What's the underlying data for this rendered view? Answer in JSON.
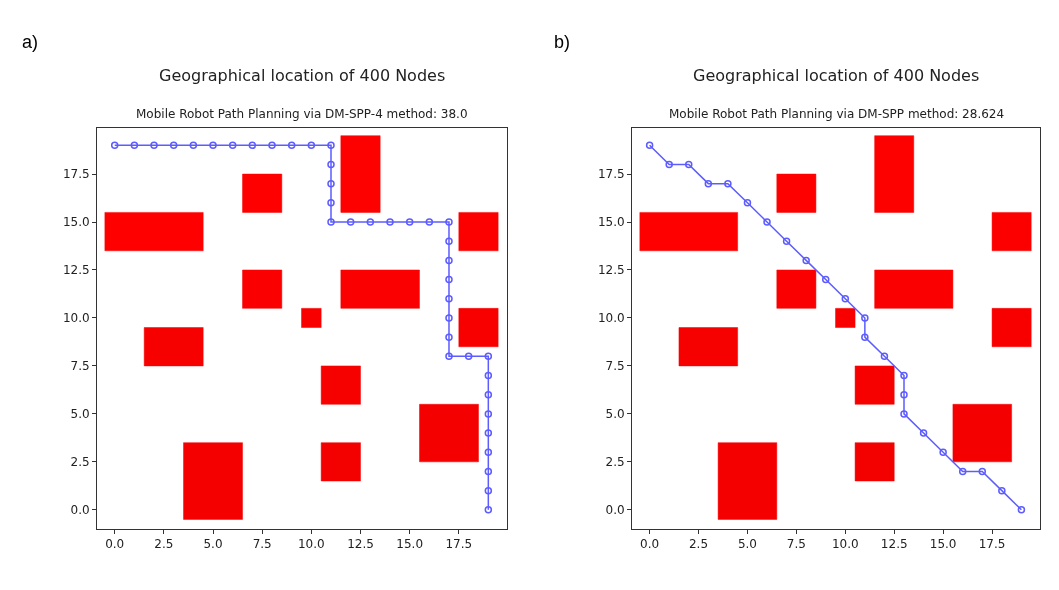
{
  "chart_data": [
    {
      "type": "line",
      "title": "Geographical location of 400 Nodes",
      "subtitle": "Mobile Robot Path Planning via DM-SPP-4 method: 38.0",
      "annotations": [
        "a)"
      ],
      "xlim": [
        -0.9,
        19.95
      ],
      "ylim": [
        -1.0,
        19.9
      ],
      "xticks": [
        {
          "value": 0,
          "label": "0.0"
        },
        {
          "value": 2.5,
          "label": "2.5"
        },
        {
          "value": 5,
          "label": "5.0"
        },
        {
          "value": 7.5,
          "label": "7.5"
        },
        {
          "value": 10,
          "label": "10.0"
        },
        {
          "value": 12.5,
          "label": "12.5"
        },
        {
          "value": 15,
          "label": "15.0"
        },
        {
          "value": 17.5,
          "label": "17.5"
        }
      ],
      "yticks": [
        {
          "value": 0,
          "label": "0.0"
        },
        {
          "value": 2.5,
          "label": "2.5"
        },
        {
          "value": 5,
          "label": "5.0"
        },
        {
          "value": 7.5,
          "label": "7.5"
        },
        {
          "value": 10,
          "label": "10.0"
        },
        {
          "value": 12.5,
          "label": "12.5"
        },
        {
          "value": 15,
          "label": "15.0"
        },
        {
          "value": 17.5,
          "label": "17.5"
        }
      ],
      "series": [
        {
          "type": "area",
          "color": "#ff0000",
          "x": [
            -0.5,
            4.5,
            4.5,
            -0.5,
            -0.5
          ],
          "values": [
            13.5,
            13.5,
            15.5,
            15.5,
            13.5
          ]
        },
        {
          "type": "area",
          "color": "#fe0000",
          "x": [
            6.5,
            8.5,
            8.5,
            6.5,
            6.5
          ],
          "values": [
            15.5,
            15.5,
            17.5,
            17.5,
            15.5
          ]
        },
        {
          "type": "area",
          "color": "#fd0000",
          "x": [
            11.5,
            13.5,
            13.5,
            11.5,
            11.5
          ],
          "values": [
            15.5,
            15.5,
            19.5,
            19.5,
            15.5
          ]
        },
        {
          "type": "area",
          "color": "#fc0000",
          "x": [
            17.5,
            19.5,
            19.5,
            17.5,
            17.5
          ],
          "values": [
            13.5,
            13.5,
            15.5,
            15.5,
            13.5
          ]
        },
        {
          "type": "area",
          "color": "#fb0000",
          "x": [
            6.5,
            8.5,
            8.5,
            6.5,
            6.5
          ],
          "values": [
            10.5,
            10.5,
            12.5,
            12.5,
            10.5
          ]
        },
        {
          "type": "area",
          "color": "#fa0000",
          "x": [
            11.5,
            15.5,
            15.5,
            11.5,
            11.5
          ],
          "values": [
            10.5,
            10.5,
            12.5,
            12.5,
            10.5
          ]
        },
        {
          "type": "area",
          "color": "#f90000",
          "x": [
            9.5,
            10.5,
            10.5,
            9.5,
            9.5
          ],
          "values": [
            9.5,
            9.5,
            10.5,
            10.5,
            9.5
          ]
        },
        {
          "type": "area",
          "color": "#f80000",
          "x": [
            17.5,
            19.5,
            19.5,
            17.5,
            17.5
          ],
          "values": [
            8.5,
            8.5,
            10.5,
            10.5,
            8.5
          ]
        },
        {
          "type": "area",
          "color": "#f70000",
          "x": [
            1.5,
            4.5,
            4.5,
            1.5,
            1.5
          ],
          "values": [
            7.5,
            7.5,
            9.5,
            9.5,
            7.5
          ]
        },
        {
          "type": "area",
          "color": "#f60000",
          "x": [
            10.5,
            12.5,
            12.5,
            10.5,
            10.5
          ],
          "values": [
            5.5,
            5.5,
            7.5,
            7.5,
            5.5
          ]
        },
        {
          "type": "area",
          "color": "#f50000",
          "x": [
            15.5,
            18.5,
            18.5,
            15.5,
            15.5
          ],
          "values": [
            2.5,
            2.5,
            5.5,
            5.5,
            2.5
          ]
        },
        {
          "type": "area",
          "color": "#f40000",
          "x": [
            3.5,
            6.5,
            6.5,
            3.5,
            3.5
          ],
          "values": [
            -0.5,
            -0.5,
            3.5,
            3.5,
            -0.5
          ]
        },
        {
          "type": "area",
          "color": "#f30000",
          "x": [
            10.5,
            12.5,
            12.5,
            10.5,
            10.5
          ],
          "values": [
            1.5,
            1.5,
            3.5,
            3.5,
            1.5
          ]
        },
        {
          "type": "line",
          "color": "#5c5cff",
          "marker": "circle",
          "line_style": "solid",
          "x": [
            0,
            1,
            2,
            3,
            4,
            5,
            6,
            7,
            8,
            9,
            10,
            11,
            11,
            11,
            11,
            11,
            12,
            13,
            14,
            15,
            16,
            17,
            17,
            17,
            17,
            17,
            17,
            17,
            17,
            18,
            19,
            19,
            19,
            19,
            19,
            19,
            19,
            19,
            19
          ],
          "values": [
            19,
            19,
            19,
            19,
            19,
            19,
            19,
            19,
            19,
            19,
            19,
            19,
            18,
            17,
            16,
            15,
            15,
            15,
            15,
            15,
            15,
            15,
            14,
            13,
            12,
            11,
            10,
            9,
            8,
            8,
            8,
            7,
            6,
            5,
            4,
            3,
            2,
            1,
            0
          ]
        }
      ]
    },
    {
      "type": "line",
      "title": "Geographical location of 400 Nodes",
      "subtitle": "Mobile Robot Path Planning via DM-SPP method: 28.624",
      "annotations": [
        "b)"
      ],
      "xlim": [
        -0.9,
        19.95
      ],
      "ylim": [
        -1.0,
        19.9
      ],
      "xticks": [
        {
          "value": 0,
          "label": "0.0"
        },
        {
          "value": 2.5,
          "label": "2.5"
        },
        {
          "value": 5,
          "label": "5.0"
        },
        {
          "value": 7.5,
          "label": "7.5"
        },
        {
          "value": 10,
          "label": "10.0"
        },
        {
          "value": 12.5,
          "label": "12.5"
        },
        {
          "value": 15,
          "label": "15.0"
        },
        {
          "value": 17.5,
          "label": "17.5"
        }
      ],
      "yticks": [
        {
          "value": 0,
          "label": "0.0"
        },
        {
          "value": 2.5,
          "label": "2.5"
        },
        {
          "value": 5,
          "label": "5.0"
        },
        {
          "value": 7.5,
          "label": "7.5"
        },
        {
          "value": 10,
          "label": "10.0"
        },
        {
          "value": 12.5,
          "label": "12.5"
        },
        {
          "value": 15,
          "label": "15.0"
        },
        {
          "value": 17.5,
          "label": "17.5"
        }
      ],
      "series": [
        {
          "type": "area",
          "color": "#ff0000",
          "x": [
            -0.5,
            4.5,
            4.5,
            -0.5,
            -0.5
          ],
          "values": [
            13.5,
            13.5,
            15.5,
            15.5,
            13.5
          ]
        },
        {
          "type": "area",
          "color": "#fe0000",
          "x": [
            6.5,
            8.5,
            8.5,
            6.5,
            6.5
          ],
          "values": [
            15.5,
            15.5,
            17.5,
            17.5,
            15.5
          ]
        },
        {
          "type": "area",
          "color": "#fd0000",
          "x": [
            11.5,
            13.5,
            13.5,
            11.5,
            11.5
          ],
          "values": [
            15.5,
            15.5,
            19.5,
            19.5,
            15.5
          ]
        },
        {
          "type": "area",
          "color": "#fc0000",
          "x": [
            17.5,
            19.5,
            19.5,
            17.5,
            17.5
          ],
          "values": [
            13.5,
            13.5,
            15.5,
            15.5,
            13.5
          ]
        },
        {
          "type": "area",
          "color": "#fb0000",
          "x": [
            6.5,
            8.5,
            8.5,
            6.5,
            6.5
          ],
          "values": [
            10.5,
            10.5,
            12.5,
            12.5,
            10.5
          ]
        },
        {
          "type": "area",
          "color": "#fa0000",
          "x": [
            11.5,
            15.5,
            15.5,
            11.5,
            11.5
          ],
          "values": [
            10.5,
            10.5,
            12.5,
            12.5,
            10.5
          ]
        },
        {
          "type": "area",
          "color": "#f90000",
          "x": [
            9.5,
            10.5,
            10.5,
            9.5,
            9.5
          ],
          "values": [
            9.5,
            9.5,
            10.5,
            10.5,
            9.5
          ]
        },
        {
          "type": "area",
          "color": "#f80000",
          "x": [
            17.5,
            19.5,
            19.5,
            17.5,
            17.5
          ],
          "values": [
            8.5,
            8.5,
            10.5,
            10.5,
            8.5
          ]
        },
        {
          "type": "area",
          "color": "#f70000",
          "x": [
            1.5,
            4.5,
            4.5,
            1.5,
            1.5
          ],
          "values": [
            7.5,
            7.5,
            9.5,
            9.5,
            7.5
          ]
        },
        {
          "type": "area",
          "color": "#f60000",
          "x": [
            10.5,
            12.5,
            12.5,
            10.5,
            10.5
          ],
          "values": [
            5.5,
            5.5,
            7.5,
            7.5,
            5.5
          ]
        },
        {
          "type": "area",
          "color": "#f50000",
          "x": [
            15.5,
            18.5,
            18.5,
            15.5,
            15.5
          ],
          "values": [
            2.5,
            2.5,
            5.5,
            5.5,
            2.5
          ]
        },
        {
          "type": "area",
          "color": "#f40000",
          "x": [
            3.5,
            6.5,
            6.5,
            3.5,
            3.5
          ],
          "values": [
            -0.5,
            -0.5,
            3.5,
            3.5,
            -0.5
          ]
        },
        {
          "type": "area",
          "color": "#f30000",
          "x": [
            10.5,
            12.5,
            12.5,
            10.5,
            10.5
          ],
          "values": [
            1.5,
            1.5,
            3.5,
            3.5,
            1.5
          ]
        },
        {
          "type": "line",
          "color": "#5c5cff",
          "marker": "circle",
          "line_style": "solid",
          "x": [
            0,
            1,
            2,
            3,
            4,
            5,
            6,
            7,
            8,
            9,
            10,
            11,
            11,
            12,
            13,
            13,
            13,
            14,
            15,
            16,
            17,
            18,
            19
          ],
          "values": [
            19,
            18,
            18,
            17,
            17,
            16,
            15,
            14,
            13,
            12,
            11,
            10,
            9,
            8,
            7,
            6,
            5,
            4,
            3,
            2,
            2,
            1,
            0
          ]
        }
      ]
    }
  ]
}
